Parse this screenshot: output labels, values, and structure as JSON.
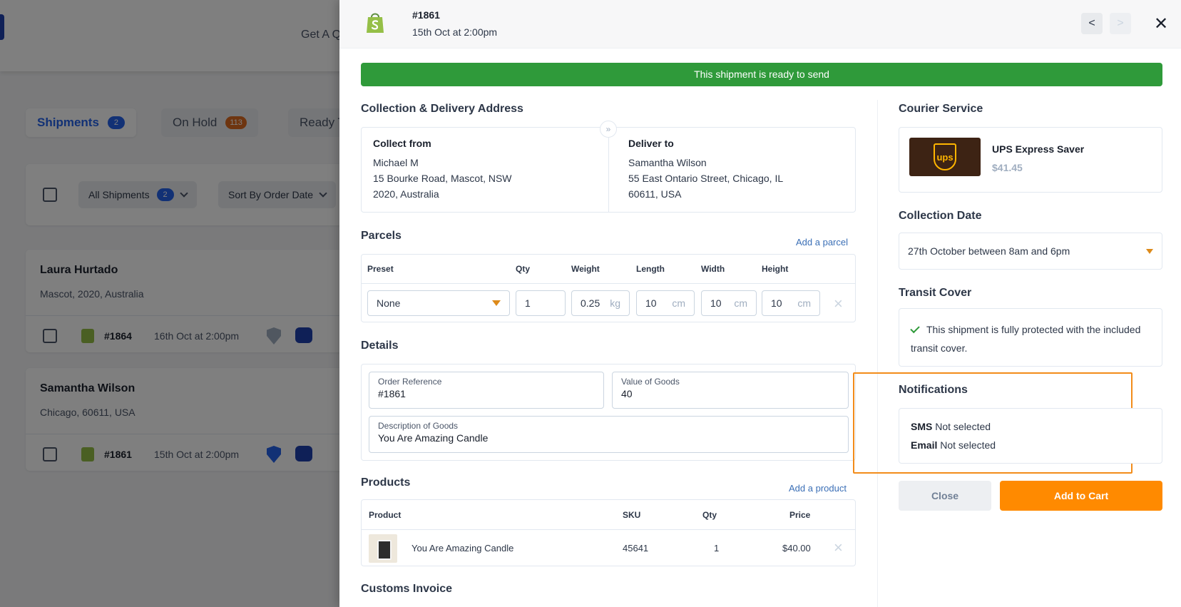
{
  "background": {
    "header_link": "Get A Q",
    "tabs": [
      {
        "label": "Shipments",
        "count": "2"
      },
      {
        "label": "On Hold",
        "count": "113"
      },
      {
        "label": "Ready T"
      }
    ],
    "filters": {
      "all_shipments": "All Shipments",
      "all_count": "2",
      "sort": "Sort By Order Date"
    },
    "cards": [
      {
        "name": "Laura Hurtado",
        "location": "Mascot, 2020, Australia",
        "order": "#1864",
        "date": "16th Oct at 2:00pm"
      },
      {
        "name": "Samantha Wilson",
        "location": "Chicago, 60611, USA",
        "order": "#1861",
        "date": "15th Oct at 2:00pm"
      }
    ]
  },
  "drawer": {
    "order_number": "#1861",
    "order_date": "15th Oct at 2:00pm",
    "prev_label": "<",
    "next_label": ">",
    "close_label": "✕",
    "banner": "This shipment is ready to send",
    "address": {
      "title": "Collection & Delivery Address",
      "collect": {
        "title": "Collect from",
        "name": "Michael M",
        "line1": "15 Bourke Road, Mascot, NSW",
        "line2": "2020, Australia"
      },
      "deliver": {
        "title": "Deliver to",
        "name": "Samantha Wilson",
        "line1": "55 East Ontario Street, Chicago, IL",
        "line2": "60611, USA"
      }
    },
    "parcels": {
      "title": "Parcels",
      "add_label": "Add a parcel",
      "headers": {
        "preset": "Preset",
        "qty": "Qty",
        "weight": "Weight",
        "length": "Length",
        "width": "Width",
        "height": "Height"
      },
      "row": {
        "preset": "None",
        "qty": "1",
        "weight": "0.25",
        "weight_unit": "kg",
        "length": "10",
        "width": "10",
        "height": "10",
        "dim_unit": "cm"
      }
    },
    "details": {
      "title": "Details",
      "order_ref_label": "Order Reference",
      "order_ref": "#1861",
      "value_label": "Value of Goods",
      "value": "40",
      "desc_label": "Description of Goods",
      "desc": "You Are Amazing Candle"
    },
    "products": {
      "title": "Products",
      "add_label": "Add a product",
      "headers": {
        "product": "Product",
        "sku": "SKU",
        "qty": "Qty",
        "price": "Price"
      },
      "row": {
        "name": "You Are Amazing Candle",
        "sku": "45641",
        "qty": "1",
        "price": "$40.00"
      }
    },
    "customs_title": "Customs Invoice",
    "courier": {
      "title": "Courier Service",
      "logo_text": "ups",
      "name": "UPS Express Saver",
      "price": "$41.45"
    },
    "collection": {
      "title": "Collection Date",
      "value": "27th October between 8am and 6pm"
    },
    "cover": {
      "title": "Transit Cover",
      "text": "This shipment is fully protected with the included transit cover."
    },
    "notifications": {
      "title": "Notifications",
      "sms_label": "SMS",
      "sms_value": "Not selected",
      "email_label": "Email",
      "email_value": "Not selected"
    },
    "buttons": {
      "close": "Close",
      "add_to_cart": "Add to Cart"
    }
  },
  "colors": {
    "accent": "#ff8a00",
    "success": "#2f9a3a",
    "link": "#3b6fb6",
    "highlight": "#f28c1a"
  }
}
